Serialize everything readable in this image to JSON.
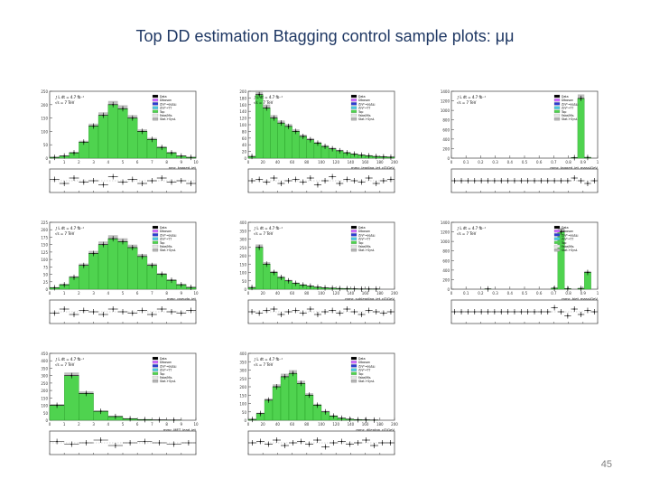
{
  "slide": {
    "title": "Top DD estimation Btagging control sample plots: μμ",
    "page_number": "45"
  },
  "legend_entries": [
    "Data",
    "Diboson",
    "Z/γ*→ee/μμ",
    "Z/γ*→ττ",
    "Top",
    "Fake/Mis",
    "Stat.+Syst."
  ],
  "atlas_label": [
    "∫ L dt = 4.7 fb⁻¹",
    "√s = 7 TeV"
  ],
  "colors": {
    "signal_fill": "#4fd34f",
    "signal_edge": "#1a8c1a",
    "uncertainty": "#b3b3b3",
    "data": "#000000",
    "frame": "#555555",
    "legend_swatches": [
      "#000000",
      "#cc66ff",
      "#2b3bd1",
      "#48c8e0",
      "#4fd34f",
      "#e8e8e8",
      "#b3b3b3"
    ]
  },
  "chart_data": [
    {
      "type": "bar",
      "title": "",
      "xlabel": "nmc_tagged_jet",
      "xlim": [
        0,
        10
      ],
      "ylim": [
        0,
        250
      ],
      "xticks": [
        "0",
        "1",
        "2",
        "3",
        "4",
        "5",
        "6",
        "7",
        "8",
        "9",
        "10"
      ],
      "yticks": [
        "0",
        "50",
        "100",
        "150",
        "200",
        "250"
      ],
      "values": [
        3,
        8,
        20,
        60,
        120,
        160,
        200,
        185,
        150,
        100,
        70,
        40,
        20,
        8,
        3
      ],
      "ratio": [
        1.05,
        0.9,
        1.1,
        0.95,
        1.0,
        0.85,
        1.15,
        0.95,
        1.05,
        0.9,
        1.0,
        1.1,
        0.95,
        1.0,
        0.9
      ]
    },
    {
      "type": "bar",
      "title": "",
      "xlabel": "mmc_leading_jet_pT/GeV",
      "xlim": [
        0,
        200
      ],
      "ylim": [
        0,
        200
      ],
      "xticks": [
        "0",
        "20",
        "40",
        "60",
        "80",
        "100",
        "120",
        "140",
        "160",
        "180",
        "200"
      ],
      "yticks": [
        "0",
        "20",
        "40",
        "60",
        "80",
        "100",
        "120",
        "140",
        "160",
        "180",
        "200"
      ],
      "values": [
        5,
        190,
        150,
        120,
        105,
        95,
        80,
        65,
        55,
        45,
        35,
        28,
        22,
        16,
        12,
        9,
        7,
        5,
        4,
        3
      ],
      "ratio": [
        1.0,
        1.05,
        0.95,
        1.1,
        0.9,
        1.0,
        1.05,
        0.95,
        1.1,
        0.85,
        1.0,
        1.15,
        0.9,
        1.05,
        1.0,
        0.95,
        1.1,
        0.9,
        1.0,
        1.05
      ]
    },
    {
      "type": "bar",
      "title": "",
      "xlabel": "mmc_tagged_jet_mass/GeV",
      "xlim": [
        0,
        1
      ],
      "ylim": [
        0,
        1400
      ],
      "xticks": [
        "0",
        "0.1",
        "0.2",
        "0.3",
        "0.4",
        "0.5",
        "0.6",
        "0.7",
        "0.8",
        "0.9",
        "1"
      ],
      "yticks": [
        "0",
        "200",
        "400",
        "600",
        "800",
        "1000",
        "1200",
        "1400"
      ],
      "values": [
        0,
        0,
        0,
        0,
        0,
        0,
        0,
        0,
        0,
        0,
        0,
        0,
        0,
        0,
        0,
        0,
        0,
        0,
        10,
        1250,
        15,
        0
      ],
      "ratio": [
        1,
        1,
        1,
        1,
        1,
        1,
        1,
        1,
        1,
        1,
        1,
        1,
        1,
        1,
        1,
        1,
        1,
        1,
        1.1,
        1.0,
        0.9,
        1
      ]
    },
    {
      "type": "bar",
      "title": "",
      "xlabel": "mmc_pseudo_jet",
      "xlim": [
        0,
        10
      ],
      "ylim": [
        0,
        225
      ],
      "xticks": [
        "0",
        "1",
        "2",
        "3",
        "4",
        "5",
        "6",
        "7",
        "8",
        "9",
        "10"
      ],
      "yticks": [
        "0",
        "25",
        "50",
        "75",
        "100",
        "125",
        "150",
        "175",
        "200",
        "225"
      ],
      "values": [
        5,
        15,
        40,
        80,
        120,
        150,
        170,
        160,
        140,
        110,
        80,
        50,
        30,
        15,
        6
      ],
      "ratio": [
        0.95,
        1.1,
        0.9,
        1.05,
        1.0,
        0.9,
        1.1,
        1.0,
        0.95,
        1.05,
        0.9,
        1.1,
        1.0,
        0.95,
        1.05
      ]
    },
    {
      "type": "bar",
      "title": "",
      "xlabel": "mmc_subleading_jet_pT/GeV",
      "xlim": [
        0,
        200
      ],
      "ylim": [
        0,
        400
      ],
      "xticks": [
        "0",
        "20",
        "40",
        "60",
        "80",
        "100",
        "120",
        "140",
        "160",
        "180",
        "200"
      ],
      "yticks": [
        "0",
        "50",
        "100",
        "150",
        "200",
        "250",
        "300",
        "350",
        "400"
      ],
      "values": [
        10,
        250,
        150,
        100,
        70,
        50,
        35,
        25,
        18,
        12,
        8,
        6,
        4,
        3,
        2,
        1,
        1,
        1,
        0,
        0
      ],
      "ratio": [
        1.0,
        0.95,
        1.05,
        1.1,
        0.9,
        1.0,
        1.05,
        0.95,
        1.1,
        0.9,
        1.0,
        1.05,
        0.95,
        1.1,
        1.0,
        0.9,
        1.05,
        1.0,
        0.95,
        1.0
      ]
    },
    {
      "type": "bar",
      "title": "",
      "xlabel": "mmc_bjet_mass/GeV",
      "xlim": [
        0,
        1
      ],
      "ylim": [
        0,
        1400
      ],
      "xticks": [
        "0",
        "0.1",
        "0.2",
        "0.3",
        "0.4",
        "0.5",
        "0.6",
        "0.7",
        "0.8",
        "0.9",
        "1"
      ],
      "yticks": [
        "0",
        "200",
        "400",
        "600",
        "800",
        "1000",
        "1200",
        "1400"
      ],
      "values": [
        0,
        0,
        0,
        0,
        0,
        5,
        0,
        0,
        0,
        0,
        0,
        0,
        0,
        0,
        0,
        20,
        1200,
        10,
        0,
        15,
        350,
        0
      ],
      "ratio": [
        1,
        1,
        1,
        1,
        1,
        1,
        1,
        1,
        1,
        1,
        1,
        1,
        1,
        1,
        1,
        1.15,
        1.0,
        0.85,
        1.1,
        0.9,
        1.05,
        1
      ]
    },
    {
      "type": "bar",
      "title": "",
      "xlabel": "mmc_MET_lead_jet",
      "xlim": [
        0,
        10
      ],
      "ylim": [
        0,
        450
      ],
      "xticks": [
        "0",
        "1",
        "2",
        "3",
        "4",
        "5",
        "6",
        "7",
        "8",
        "9",
        "10"
      ],
      "yticks": [
        "0",
        "50",
        "100",
        "150",
        "200",
        "250",
        "300",
        "350",
        "400",
        "450"
      ],
      "values": [
        100,
        300,
        180,
        60,
        25,
        10,
        4,
        2,
        1,
        0
      ],
      "ratio": [
        1.05,
        0.95,
        1.0,
        1.1,
        0.9,
        1.0,
        1.05,
        1.0,
        0.95,
        1.0
      ]
    },
    {
      "type": "bar",
      "title": "",
      "xlabel": "mmc_dilepton_pT/GeV",
      "xlim": [
        0,
        200
      ],
      "ylim": [
        0,
        400
      ],
      "xticks": [
        "0",
        "20",
        "40",
        "60",
        "80",
        "100",
        "120",
        "140",
        "160",
        "180",
        "200"
      ],
      "yticks": [
        "0",
        "50",
        "100",
        "150",
        "200",
        "250",
        "300",
        "350",
        "400"
      ],
      "values": [
        5,
        40,
        120,
        200,
        260,
        280,
        220,
        150,
        90,
        50,
        25,
        12,
        6,
        3,
        2,
        1,
        0,
        0
      ],
      "ratio": [
        1.0,
        1.05,
        0.95,
        1.1,
        0.9,
        1.0,
        1.05,
        0.95,
        1.1,
        0.85,
        1.0,
        1.05,
        0.95,
        1.0,
        1.1,
        0.9,
        1.0,
        1.0
      ]
    }
  ]
}
